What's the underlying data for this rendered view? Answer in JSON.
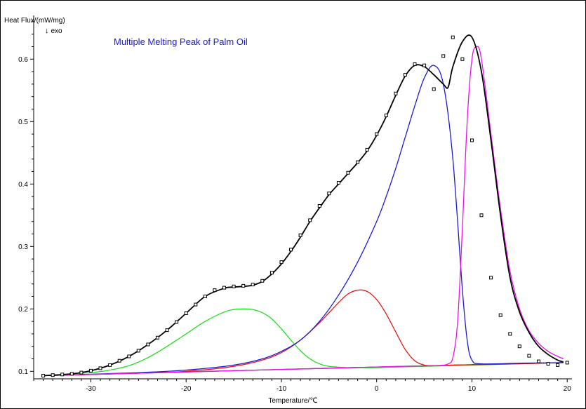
{
  "chart_data": {
    "type": "line",
    "title": "Multiple Melting Peak of Palm Oil",
    "ylabel": "Heat Flux/(mW/mg)",
    "direction_note": "exo",
    "xlabel": "Temperature/℃",
    "xlim": [
      -36,
      20.5
    ],
    "ylim": [
      0.088,
      0.67
    ],
    "xticks": [
      -30,
      -20,
      -10,
      0,
      10,
      20
    ],
    "yticks": [
      0.1,
      0.2,
      0.3,
      0.4,
      0.5,
      0.6
    ],
    "grid": false,
    "colors": {
      "measured": "#000000",
      "fit": "#000000",
      "baseline": "#000000",
      "peak1": "#22dd22",
      "peak2": "#ee1111",
      "peak3": "#1a1ad8",
      "peak4": "#ee11ee"
    },
    "measured_points": {
      "x": [
        -35,
        -34,
        -33,
        -32,
        -31,
        -30,
        -29,
        -28,
        -27,
        -26,
        -25,
        -24,
        -23,
        -22,
        -21,
        -20,
        -19,
        -18,
        -17,
        -16,
        -15,
        -14,
        -13,
        -12,
        -11,
        -10,
        -9,
        -8,
        -7,
        -6,
        -5,
        -4,
        -3,
        -2,
        -1,
        0,
        1,
        2,
        3,
        4,
        5,
        6,
        7,
        8,
        9,
        10,
        11,
        12,
        13,
        14,
        15,
        16,
        17,
        18,
        19,
        20
      ],
      "y": [
        0.093,
        0.094,
        0.095,
        0.096,
        0.098,
        0.101,
        0.105,
        0.11,
        0.117,
        0.124,
        0.133,
        0.143,
        0.154,
        0.166,
        0.179,
        0.193,
        0.207,
        0.22,
        0.23,
        0.234,
        0.236,
        0.237,
        0.239,
        0.245,
        0.258,
        0.275,
        0.295,
        0.318,
        0.342,
        0.365,
        0.385,
        0.402,
        0.418,
        0.435,
        0.455,
        0.48,
        0.51,
        0.545,
        0.575,
        0.592,
        0.59,
        0.552,
        0.605,
        0.635,
        0.6,
        0.47,
        0.35,
        0.25,
        0.19,
        0.16,
        0.14,
        0.125,
        0.116,
        0.112,
        0.11,
        0.114
      ]
    },
    "series": [
      {
        "x": [
          -35,
          -32,
          -30,
          -28,
          -26,
          -24,
          -22,
          -20,
          -18,
          -16,
          -15,
          -14,
          -13,
          -12,
          -11,
          -10,
          -9,
          -8,
          -7,
          -6,
          -5,
          -4,
          -3,
          -2,
          -1,
          0,
          1,
          2,
          3,
          4,
          5,
          6,
          7,
          7.5,
          8,
          9,
          10,
          11,
          12,
          13,
          14,
          15,
          16,
          17,
          18,
          19,
          19.6
        ],
        "y": [
          0.093,
          0.096,
          0.101,
          0.11,
          0.124,
          0.143,
          0.166,
          0.193,
          0.22,
          0.233,
          0.235,
          0.236,
          0.238,
          0.244,
          0.256,
          0.272,
          0.292,
          0.315,
          0.34,
          0.362,
          0.383,
          0.4,
          0.417,
          0.434,
          0.453,
          0.478,
          0.508,
          0.542,
          0.573,
          0.59,
          0.588,
          0.575,
          0.56,
          0.555,
          0.588,
          0.628,
          0.635,
          0.58,
          0.47,
          0.35,
          0.25,
          0.195,
          0.162,
          0.14,
          0.127,
          0.118,
          0.115
        ]
      },
      {
        "x": [
          -35,
          -30,
          -28,
          -26,
          -24,
          -22,
          -20,
          -18,
          -16,
          -15,
          -14,
          -13,
          -12,
          -11,
          -10,
          -9,
          -8,
          -7,
          -6,
          -5,
          -3,
          0,
          5,
          10,
          15,
          19.6
        ],
        "y": [
          0.093,
          0.098,
          0.102,
          0.109,
          0.122,
          0.14,
          0.16,
          0.18,
          0.195,
          0.199,
          0.2,
          0.199,
          0.194,
          0.184,
          0.168,
          0.15,
          0.133,
          0.12,
          0.112,
          0.108,
          0.106,
          0.106,
          0.108,
          0.11,
          0.112,
          0.114
        ]
      },
      {
        "x": [
          -35,
          -25,
          -20,
          -15,
          -12,
          -10,
          -8,
          -6,
          -4,
          -3,
          -2,
          -1,
          0,
          1,
          2,
          3,
          4,
          5,
          6,
          8,
          12,
          19.6
        ],
        "y": [
          0.093,
          0.097,
          0.1,
          0.108,
          0.118,
          0.13,
          0.15,
          0.178,
          0.21,
          0.224,
          0.23,
          0.228,
          0.215,
          0.192,
          0.163,
          0.135,
          0.117,
          0.11,
          0.109,
          0.11,
          0.111,
          0.114
        ]
      },
      {
        "x": [
          -35,
          -25,
          -20,
          -15,
          -12,
          -10,
          -8,
          -6,
          -4,
          -2,
          0,
          1,
          2,
          3,
          4,
          5,
          6,
          7,
          8,
          9,
          9.5,
          10,
          11,
          15,
          19.6
        ],
        "y": [
          0.093,
          0.098,
          0.102,
          0.11,
          0.12,
          0.132,
          0.15,
          0.18,
          0.222,
          0.275,
          0.34,
          0.38,
          0.425,
          0.475,
          0.525,
          0.57,
          0.59,
          0.56,
          0.44,
          0.23,
          0.15,
          0.118,
          0.112,
          0.113,
          0.114
        ]
      },
      {
        "x": [
          -35,
          0,
          6,
          7,
          7.5,
          8,
          8.5,
          9,
          9.5,
          10,
          10.5,
          11,
          12,
          13,
          14,
          15,
          16,
          17,
          18,
          19,
          19.6
        ],
        "y": [
          0.093,
          0.107,
          0.109,
          0.11,
          0.112,
          0.122,
          0.18,
          0.33,
          0.5,
          0.6,
          0.62,
          0.6,
          0.48,
          0.36,
          0.26,
          0.2,
          0.165,
          0.145,
          0.132,
          0.124,
          0.12
        ]
      },
      {
        "x": [
          -35,
          0,
          19.6
        ],
        "y": [
          0.093,
          0.107,
          0.114
        ]
      }
    ]
  }
}
